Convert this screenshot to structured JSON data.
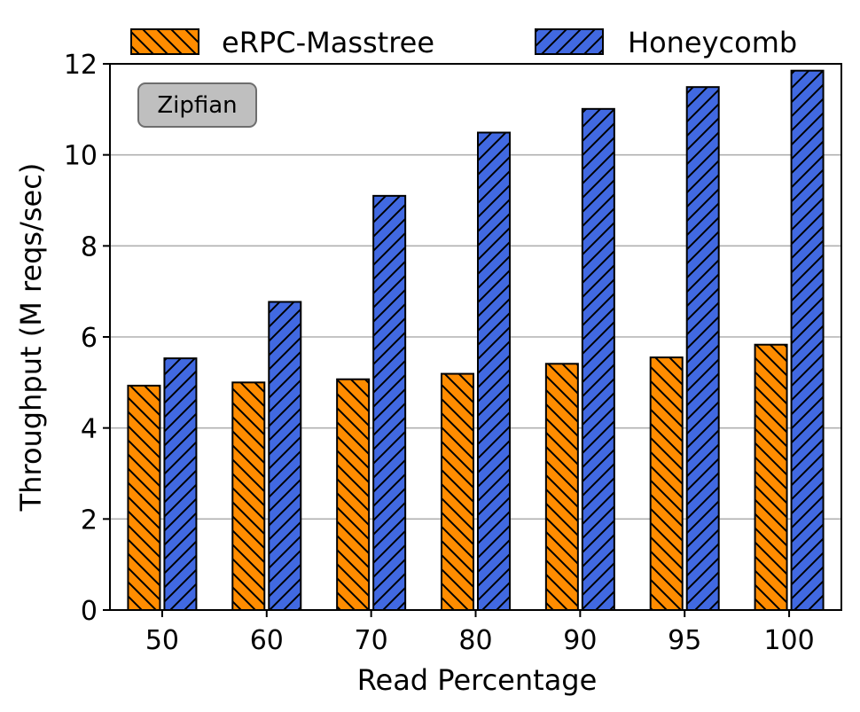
{
  "chart_data": {
    "type": "bar",
    "categories": [
      "50",
      "60",
      "70",
      "80",
      "90",
      "95",
      "100"
    ],
    "series": [
      {
        "name": "eRPC-Masstree",
        "color": "#ff8c00",
        "hatch": "backslash",
        "values": [
          4.93,
          5.0,
          5.07,
          5.19,
          5.41,
          5.55,
          5.83
        ]
      },
      {
        "name": "Honeycomb",
        "color": "#4169e1",
        "hatch": "slash",
        "values": [
          5.53,
          6.77,
          9.1,
          10.49,
          11.01,
          11.49,
          11.85
        ]
      }
    ],
    "title": "",
    "xlabel": "Read Percentage",
    "ylabel": "Throughput (M reqs/sec)",
    "ylim": [
      0,
      12
    ],
    "yticks": [
      "0",
      "2",
      "4",
      "6",
      "8",
      "10",
      "12"
    ],
    "grid": "y-axis major",
    "legend_position": "top, above plot",
    "annotation": "Zipfian"
  }
}
